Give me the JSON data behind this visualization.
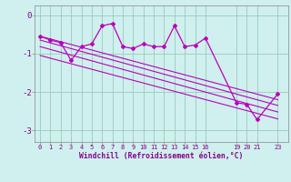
{
  "xlabel": "Windchill (Refroidissement éolien,°C)",
  "background_color": "#cff0ee",
  "grid_color": "#99ccbb",
  "line_color": "#bb00bb",
  "xlim": [
    -0.5,
    24.0
  ],
  "ylim": [
    -3.3,
    0.25
  ],
  "yticks": [
    0,
    -1,
    -2,
    -3
  ],
  "xticks": [
    0,
    1,
    2,
    3,
    4,
    5,
    6,
    7,
    8,
    9,
    10,
    11,
    12,
    13,
    14,
    15,
    16,
    19,
    20,
    21,
    23
  ],
  "xtick_labels": [
    "0",
    "1",
    "2",
    "3",
    "4",
    "5",
    "6",
    "7",
    "8",
    "9",
    "10",
    "11",
    "12",
    "13",
    "14",
    "15",
    "16",
    "19",
    "20",
    "21",
    "23"
  ],
  "main_line_x": [
    0,
    1,
    2,
    3,
    4,
    5,
    6,
    7,
    8,
    9,
    10,
    11,
    12,
    13,
    14,
    15,
    16,
    19,
    20,
    21,
    23
  ],
  "main_line_y": [
    -0.55,
    -0.65,
    -0.72,
    -1.18,
    -0.82,
    -0.75,
    -0.28,
    -0.22,
    -0.82,
    -0.87,
    -0.75,
    -0.82,
    -0.82,
    -0.28,
    -0.82,
    -0.78,
    -0.6,
    -2.28,
    -2.32,
    -2.72,
    -2.05
  ],
  "trend_lines": [
    {
      "x": [
        0,
        23
      ],
      "y": [
        -0.55,
        -2.2
      ]
    },
    {
      "x": [
        0,
        23
      ],
      "y": [
        -0.65,
        -2.35
      ]
    },
    {
      "x": [
        0,
        23
      ],
      "y": [
        -0.82,
        -2.52
      ]
    },
    {
      "x": [
        0,
        23
      ],
      "y": [
        -1.05,
        -2.7
      ]
    }
  ]
}
